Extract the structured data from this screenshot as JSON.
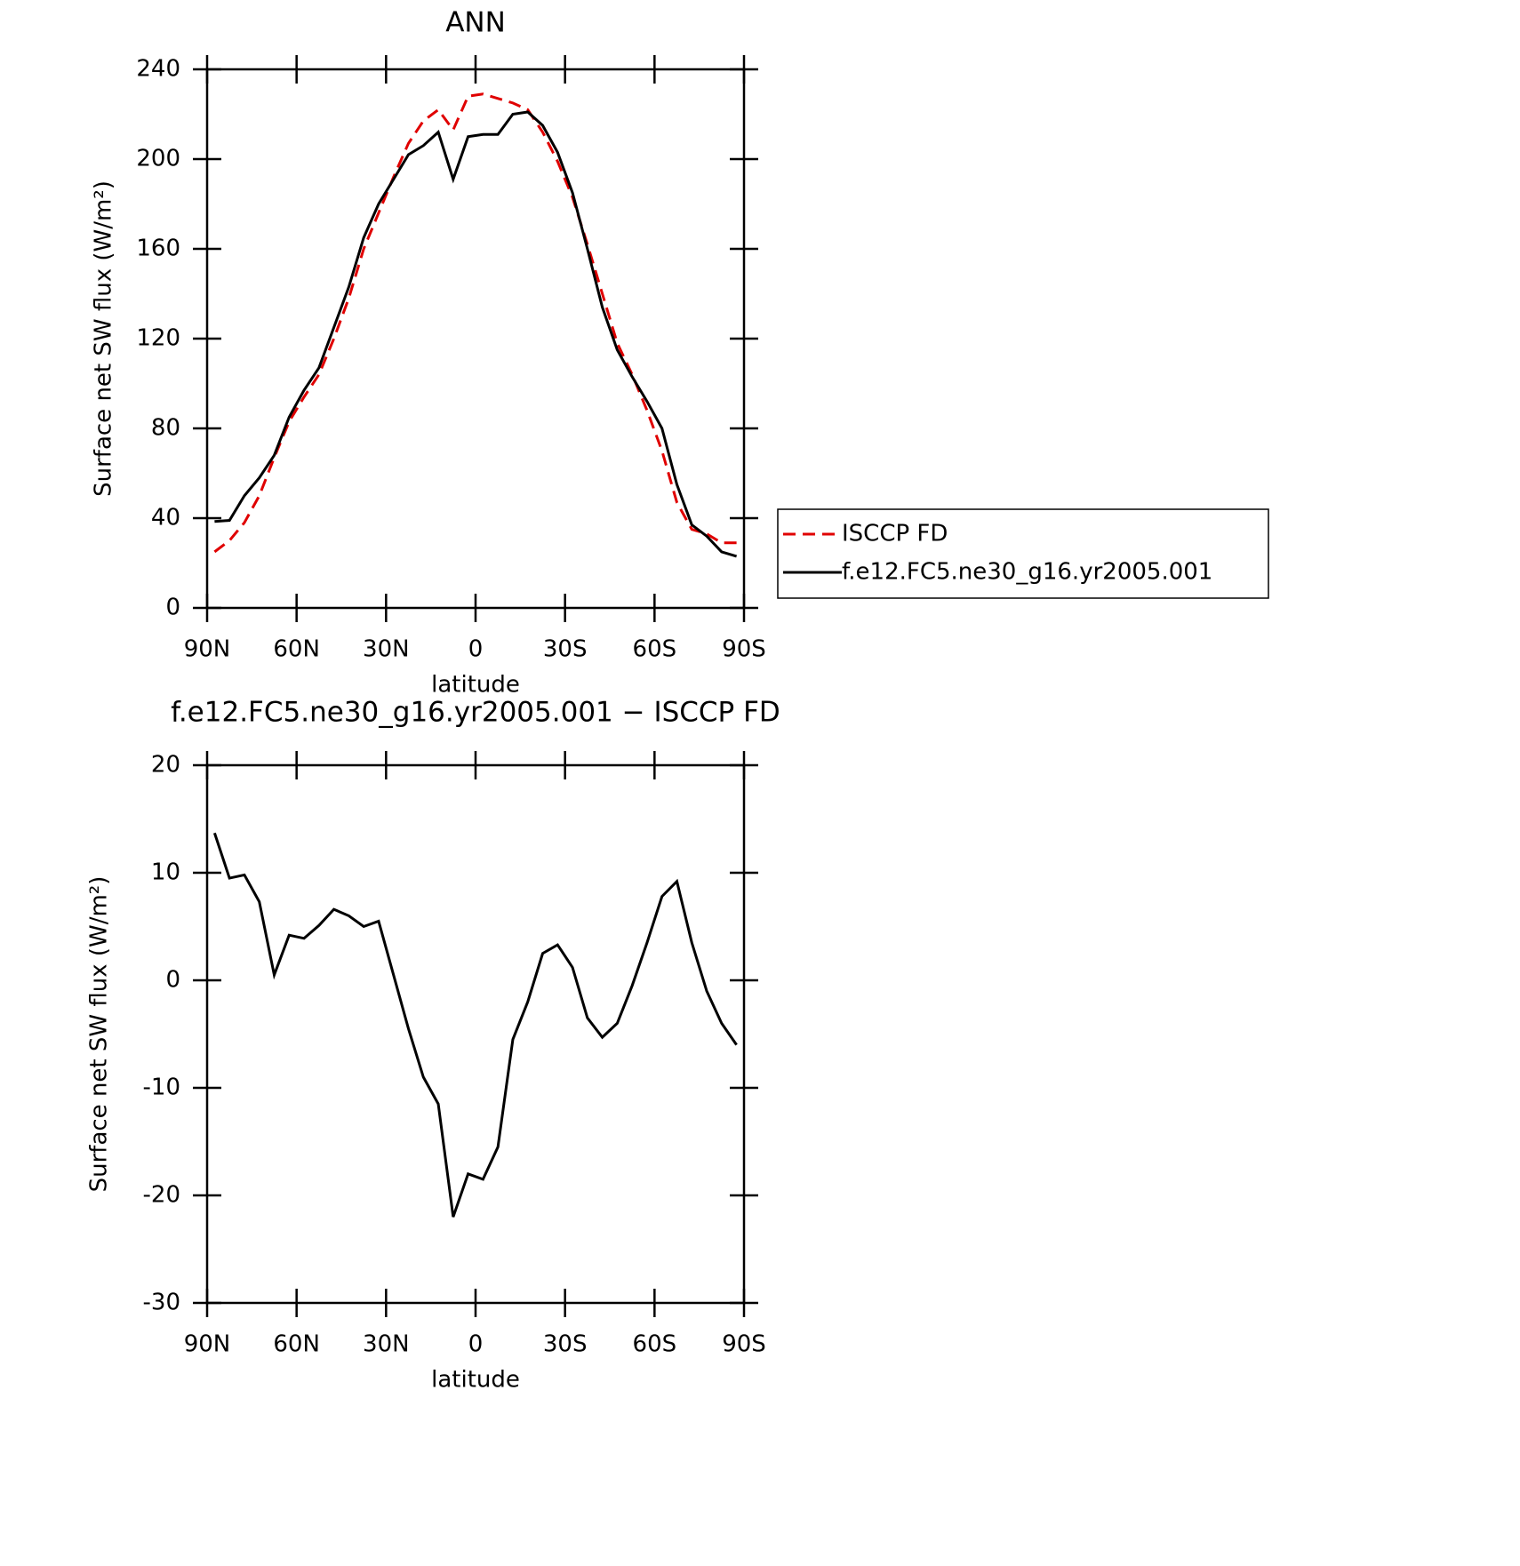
{
  "chart_data": [
    {
      "type": "line",
      "title": "ANN",
      "xlabel": "latitude",
      "ylabel": "Surface net SW flux (W/m²)",
      "x": [
        87.5,
        82.5,
        77.5,
        72.5,
        67.5,
        62.5,
        57.5,
        52.5,
        47.5,
        42.5,
        37.5,
        32.5,
        27.5,
        22.5,
        17.5,
        12.5,
        7.5,
        2.5,
        -2.5,
        -7.5,
        -12.5,
        -17.5,
        -22.5,
        -27.5,
        -32.5,
        -37.5,
        -42.5,
        -47.5,
        -52.5,
        -57.5,
        -62.5,
        -67.5,
        -72.5,
        -77.5,
        -82.5,
        -87.5
      ],
      "series": [
        {
          "name": "ISCCP FD",
          "color": "#e00000",
          "dash": "dashed",
          "values": [
            25,
            30,
            38,
            50,
            67,
            83,
            94,
            104,
            120,
            138,
            160,
            176,
            192,
            207,
            217,
            222,
            213,
            228,
            229,
            227,
            225,
            222,
            212,
            199,
            183,
            162,
            140,
            118,
            104,
            88,
            70,
            47,
            35,
            33,
            29,
            29
          ]
        },
        {
          "name": "f.e12.FC5.ne30_g16.yr2005.001",
          "color": "#000000",
          "dash": "solid",
          "values": [
            38.5,
            39,
            50,
            58,
            68,
            85,
            97,
            107,
            125,
            143,
            165,
            180,
            191,
            202,
            206,
            212,
            191,
            210,
            211,
            211,
            220,
            221,
            215,
            203,
            185,
            160,
            134,
            115,
            103,
            92,
            80,
            55,
            37,
            32,
            25,
            23
          ]
        }
      ],
      "xlim": [
        90,
        -90
      ],
      "xticks": [
        {
          "value": 90,
          "label": "90N"
        },
        {
          "value": 60,
          "label": "60N"
        },
        {
          "value": 30,
          "label": "30N"
        },
        0,
        {
          "value": -30,
          "label": "30S"
        },
        {
          "value": -60,
          "label": "60S"
        },
        {
          "value": -90,
          "label": "90S"
        }
      ],
      "ylim": [
        0,
        240
      ],
      "yticks": [
        0,
        40,
        80,
        120,
        160,
        200,
        240
      ],
      "legend": "right"
    },
    {
      "type": "line",
      "title": "f.e12.FC5.ne30_g16.yr2005.001 − ISCCP FD",
      "xlabel": "latitude",
      "ylabel": "Surface net SW flux (W/m²)",
      "x": [
        87.5,
        82.5,
        77.5,
        72.5,
        67.5,
        62.5,
        57.5,
        52.5,
        47.5,
        42.5,
        37.5,
        32.5,
        27.5,
        22.5,
        17.5,
        12.5,
        7.5,
        2.5,
        -2.5,
        -7.5,
        -12.5,
        -17.5,
        -22.5,
        -27.5,
        -32.5,
        -37.5,
        -42.5,
        -47.5,
        -52.5,
        -57.5,
        -62.5,
        -67.5,
        -72.5,
        -77.5,
        -82.5,
        -87.5
      ],
      "series": [
        {
          "color": "#000000",
          "dash": "solid",
          "values": [
            13.7,
            9.5,
            9.8,
            7.3,
            0.5,
            4.2,
            3.9,
            5.1,
            6.6,
            6.0,
            5.0,
            5.5,
            0.5,
            -4.5,
            -9.0,
            -11.5,
            -22,
            -18,
            -18.5,
            -15.5,
            -5.5,
            -2,
            2.5,
            3.3,
            1.2,
            -3.5,
            -5.3,
            -4,
            -0.5,
            3.5,
            7.8,
            9.2,
            3.5,
            -1,
            -4,
            -6
          ]
        }
      ],
      "xlim": [
        90,
        -90
      ],
      "xticks": [
        {
          "value": 90,
          "label": "90N"
        },
        {
          "value": 60,
          "label": "60N"
        },
        {
          "value": 30,
          "label": "30N"
        },
        0,
        {
          "value": -30,
          "label": "30S"
        },
        {
          "value": -60,
          "label": "60S"
        },
        {
          "value": -90,
          "label": "90S"
        }
      ],
      "ylim": [
        -30,
        20
      ],
      "yticks": [
        -30,
        -20,
        -10,
        0,
        10,
        20
      ]
    }
  ]
}
